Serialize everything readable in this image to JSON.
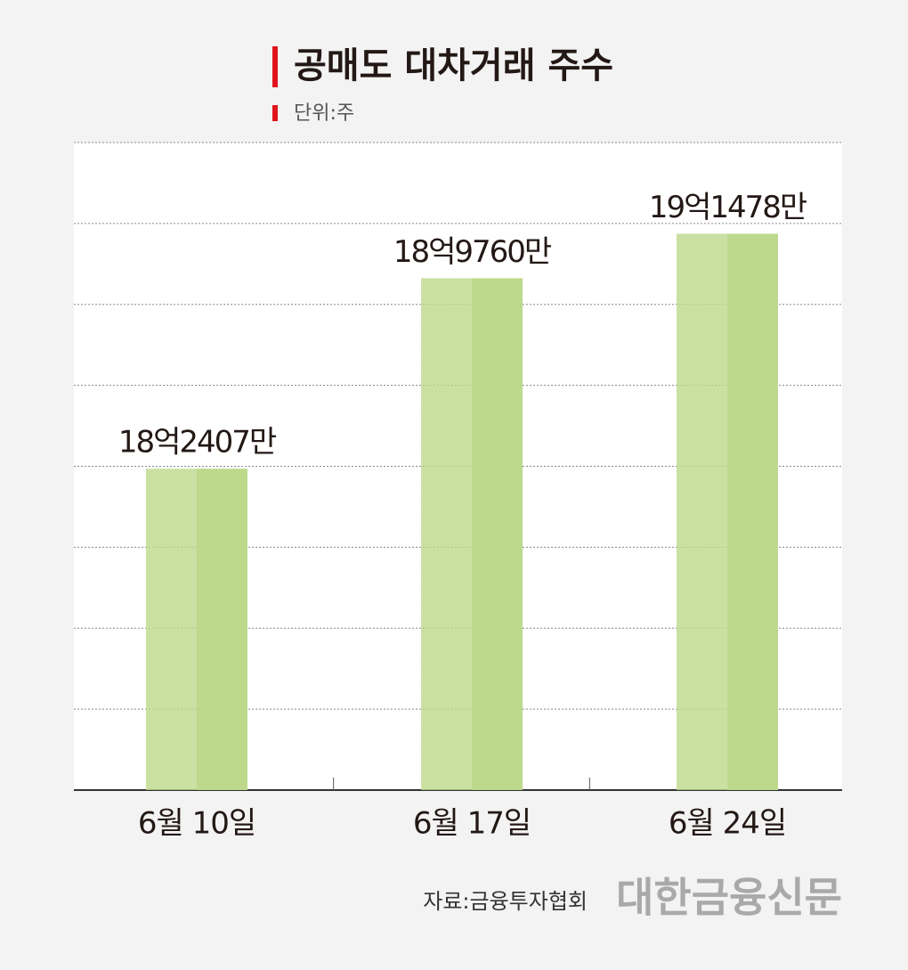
{
  "chart_data": {
    "type": "bar",
    "title": "공매도 대차거래 주수",
    "subtitle": "단위:주",
    "categories": [
      "6월 10일",
      "6월 17일",
      "6월 24일"
    ],
    "values": [
      1824070000,
      1897600000,
      1914780000
    ],
    "value_labels": [
      "18억2407만",
      "18억9760만",
      "19억1478만"
    ],
    "color": "#bdd98c",
    "ylim": [
      1700000000,
      1950000000
    ],
    "grid": true,
    "source": "자료:금융투자협회",
    "publisher": "대한금융신문"
  }
}
